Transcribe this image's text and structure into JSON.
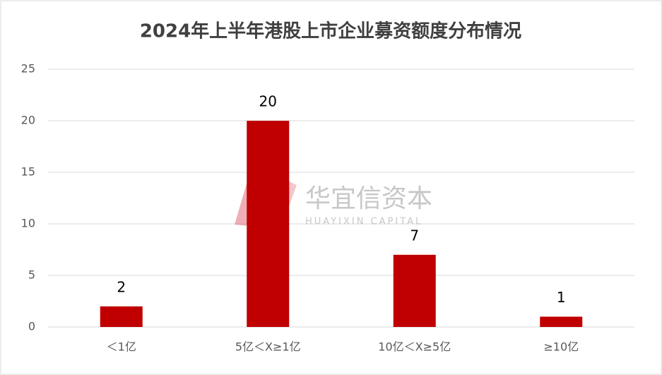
{
  "chart_data": {
    "type": "bar",
    "title": "2024年上半年港股上市企业募资额度分布情况",
    "categories": [
      "＜1亿",
      "5亿＜X≥1亿",
      "10亿＜X≥5亿",
      "≥10亿"
    ],
    "values": [
      2,
      20,
      7,
      1
    ],
    "color": "#c00000",
    "ylim": [
      0,
      25
    ],
    "yticks": [
      0,
      5,
      10,
      15,
      20,
      25
    ],
    "grid": true,
    "watermark": {
      "name": "华宜信资本",
      "subtitle": "HUAYIXIN CAPITAL"
    }
  }
}
